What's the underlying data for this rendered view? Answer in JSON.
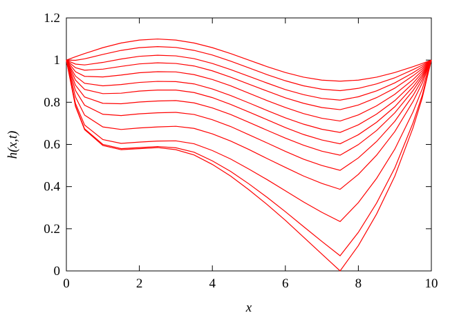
{
  "chart_data": {
    "type": "line",
    "xlabel": "x",
    "ylabel": "h(x,t)",
    "x": [
      0,
      0.25,
      0.5,
      1,
      1.5,
      2,
      2.5,
      3,
      3.5,
      4,
      4.5,
      5,
      5.5,
      6,
      6.5,
      7,
      7.5,
      8,
      8.5,
      9,
      9.5,
      9.75,
      10
    ],
    "series": [
      {
        "color": "#ff0000",
        "values": [
          1,
          1.016,
          1.031,
          1.059,
          1.081,
          1.095,
          1.1,
          1.095,
          1.081,
          1.059,
          1.031,
          1,
          0.969,
          0.941,
          0.919,
          0.905,
          0.9,
          0.905,
          0.919,
          0.941,
          0.969,
          0.984,
          1
        ]
      },
      {
        "color": "#ff0000",
        "values": [
          1,
          0.999,
          1.006,
          1.027,
          1.046,
          1.059,
          1.064,
          1.06,
          1.046,
          1.024,
          0.995,
          0.963,
          0.931,
          0.902,
          0.878,
          0.862,
          0.855,
          0.866,
          0.887,
          0.916,
          0.955,
          0.976,
          1
        ]
      },
      {
        "color": "#ff0000",
        "values": [
          1,
          0.981,
          0.977,
          0.989,
          1.005,
          1.018,
          1.023,
          1.02,
          1.007,
          0.984,
          0.955,
          0.923,
          0.891,
          0.86,
          0.836,
          0.818,
          0.81,
          0.826,
          0.854,
          0.892,
          0.94,
          0.968,
          1
        ]
      },
      {
        "color": "#ff0000",
        "values": [
          1,
          0.964,
          0.952,
          0.957,
          0.97,
          0.982,
          0.987,
          0.984,
          0.972,
          0.949,
          0.919,
          0.886,
          0.853,
          0.821,
          0.795,
          0.775,
          0.765,
          0.787,
          0.822,
          0.867,
          0.926,
          0.959,
          1
        ]
      },
      {
        "color": "#ff0000",
        "values": [
          1,
          0.945,
          0.923,
          0.92,
          0.929,
          0.94,
          0.945,
          0.944,
          0.931,
          0.908,
          0.878,
          0.843,
          0.808,
          0.775,
          0.746,
          0.724,
          0.711,
          0.74,
          0.783,
          0.838,
          0.908,
          0.95,
          1
        ]
      },
      {
        "color": "#ff0000",
        "values": [
          1,
          0.924,
          0.89,
          0.878,
          0.884,
          0.894,
          0.899,
          0.898,
          0.887,
          0.863,
          0.832,
          0.797,
          0.761,
          0.726,
          0.696,
          0.672,
          0.657,
          0.693,
          0.744,
          0.808,
          0.891,
          0.94,
          1
        ]
      },
      {
        "color": "#ff0000",
        "values": [
          1,
          0.905,
          0.861,
          0.841,
          0.843,
          0.853,
          0.858,
          0.858,
          0.846,
          0.822,
          0.79,
          0.754,
          0.717,
          0.68,
          0.647,
          0.621,
          0.603,
          0.646,
          0.705,
          0.779,
          0.874,
          0.93,
          1
        ]
      },
      {
        "color": "#ff0000",
        "values": [
          1,
          0.881,
          0.825,
          0.795,
          0.793,
          0.801,
          0.806,
          0.808,
          0.797,
          0.773,
          0.742,
          0.705,
          0.667,
          0.63,
          0.596,
          0.568,
          0.549,
          0.599,
          0.666,
          0.75,
          0.856,
          0.92,
          1
        ]
      },
      {
        "color": "#ff0000",
        "values": [
          1,
          0.856,
          0.786,
          0.743,
          0.737,
          0.745,
          0.75,
          0.752,
          0.742,
          0.717,
          0.685,
          0.646,
          0.607,
          0.567,
          0.53,
          0.5,
          0.477,
          0.536,
          0.614,
          0.71,
          0.833,
          0.907,
          1
        ]
      },
      {
        "color": "#ff0000",
        "values": [
          1,
          0.825,
          0.739,
          0.683,
          0.671,
          0.678,
          0.683,
          0.686,
          0.676,
          0.65,
          0.616,
          0.576,
          0.533,
          0.491,
          0.45,
          0.415,
          0.387,
          0.458,
          0.549,
          0.661,
          0.804,
          0.891,
          1
        ]
      },
      {
        "color": "#ff0000",
        "values": [
          1,
          0.794,
          0.692,
          0.623,
          0.605,
          0.611,
          0.616,
          0.617,
          0.603,
          0.571,
          0.531,
          0.483,
          0.433,
          0.38,
          0.327,
          0.278,
          0.234,
          0.324,
          0.439,
          0.578,
          0.755,
          0.863,
          1
        ]
      },
      {
        "color": "#ff0000",
        "values": [
          1,
          0.782,
          0.674,
          0.6,
          0.58,
          0.585,
          0.59,
          0.584,
          0.563,
          0.522,
          0.472,
          0.413,
          0.349,
          0.281,
          0.21,
          0.14,
          0.072,
          0.183,
          0.322,
          0.489,
          0.703,
          0.833,
          1
        ]
      },
      {
        "color": "#ff0000",
        "values": [
          1,
          0.78,
          0.67,
          0.595,
          0.575,
          0.58,
          0.585,
          0.575,
          0.55,
          0.505,
          0.45,
          0.385,
          0.315,
          0.24,
          0.16,
          0.08,
          0,
          0.12,
          0.27,
          0.45,
          0.68,
          0.82,
          1
        ]
      }
    ],
    "xlim": [
      0,
      10
    ],
    "xticks": [
      0,
      2,
      4,
      6,
      8,
      10
    ],
    "ylim": [
      0,
      1.2
    ],
    "yticks": [
      0,
      0.2,
      0.4,
      0.6,
      0.8,
      1,
      1.2
    ]
  }
}
